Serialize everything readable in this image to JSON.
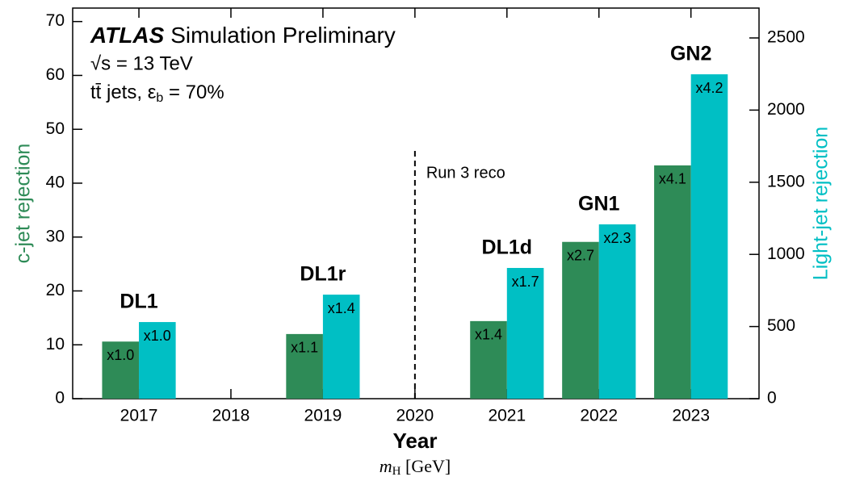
{
  "chart_data": {
    "type": "bar",
    "title": {
      "experiment": "ATLAS",
      "status": "Simulation Preliminary",
      "energy": "√s = 13 TeV",
      "sample": "tt̄ jets, ε",
      "sample_sub": "b",
      "sample_wp": " = 70%"
    },
    "xlabel": "Year",
    "ylabel": "c-jet rejection",
    "y2label": "Light-jet rejection",
    "footnote": {
      "symbol": "m",
      "subscript": "H",
      "unit": " [GeV]"
    },
    "xlim": [
      2016.28,
      2023.74
    ],
    "xticks": [
      2017,
      2018,
      2019,
      2020,
      2021,
      2022,
      2023
    ],
    "ylim": [
      0,
      72.5
    ],
    "yticks": [
      0,
      10,
      20,
      30,
      40,
      50,
      60,
      70
    ],
    "y2lim": [
      0,
      2707
    ],
    "y2ticks": [
      0,
      500,
      1000,
      1500,
      2000,
      2500
    ],
    "x": [
      2017,
      2019,
      2021,
      2022,
      2023
    ],
    "algorithms": [
      "DL1",
      "DL1r",
      "DL1d",
      "GN1",
      "GN2"
    ],
    "series": [
      {
        "name": "c-jet rejection",
        "color": "#2e8b57",
        "axis": "y",
        "values": [
          10.6,
          12.0,
          14.4,
          29.1,
          43.3
        ],
        "bar_labels": [
          "x1.0",
          "x1.1",
          "x1.4",
          "x2.7",
          "x4.1"
        ]
      },
      {
        "name": "Light-jet rejection",
        "color": "#00bfc4",
        "axis": "y2",
        "values": [
          531,
          721,
          906,
          1208,
          2248
        ],
        "bar_labels": [
          "x1.0",
          "x1.4",
          "x1.7",
          "x2.3",
          "x4.2"
        ]
      }
    ],
    "divider": {
      "x": 2020,
      "label": "Run 3 reco"
    }
  }
}
